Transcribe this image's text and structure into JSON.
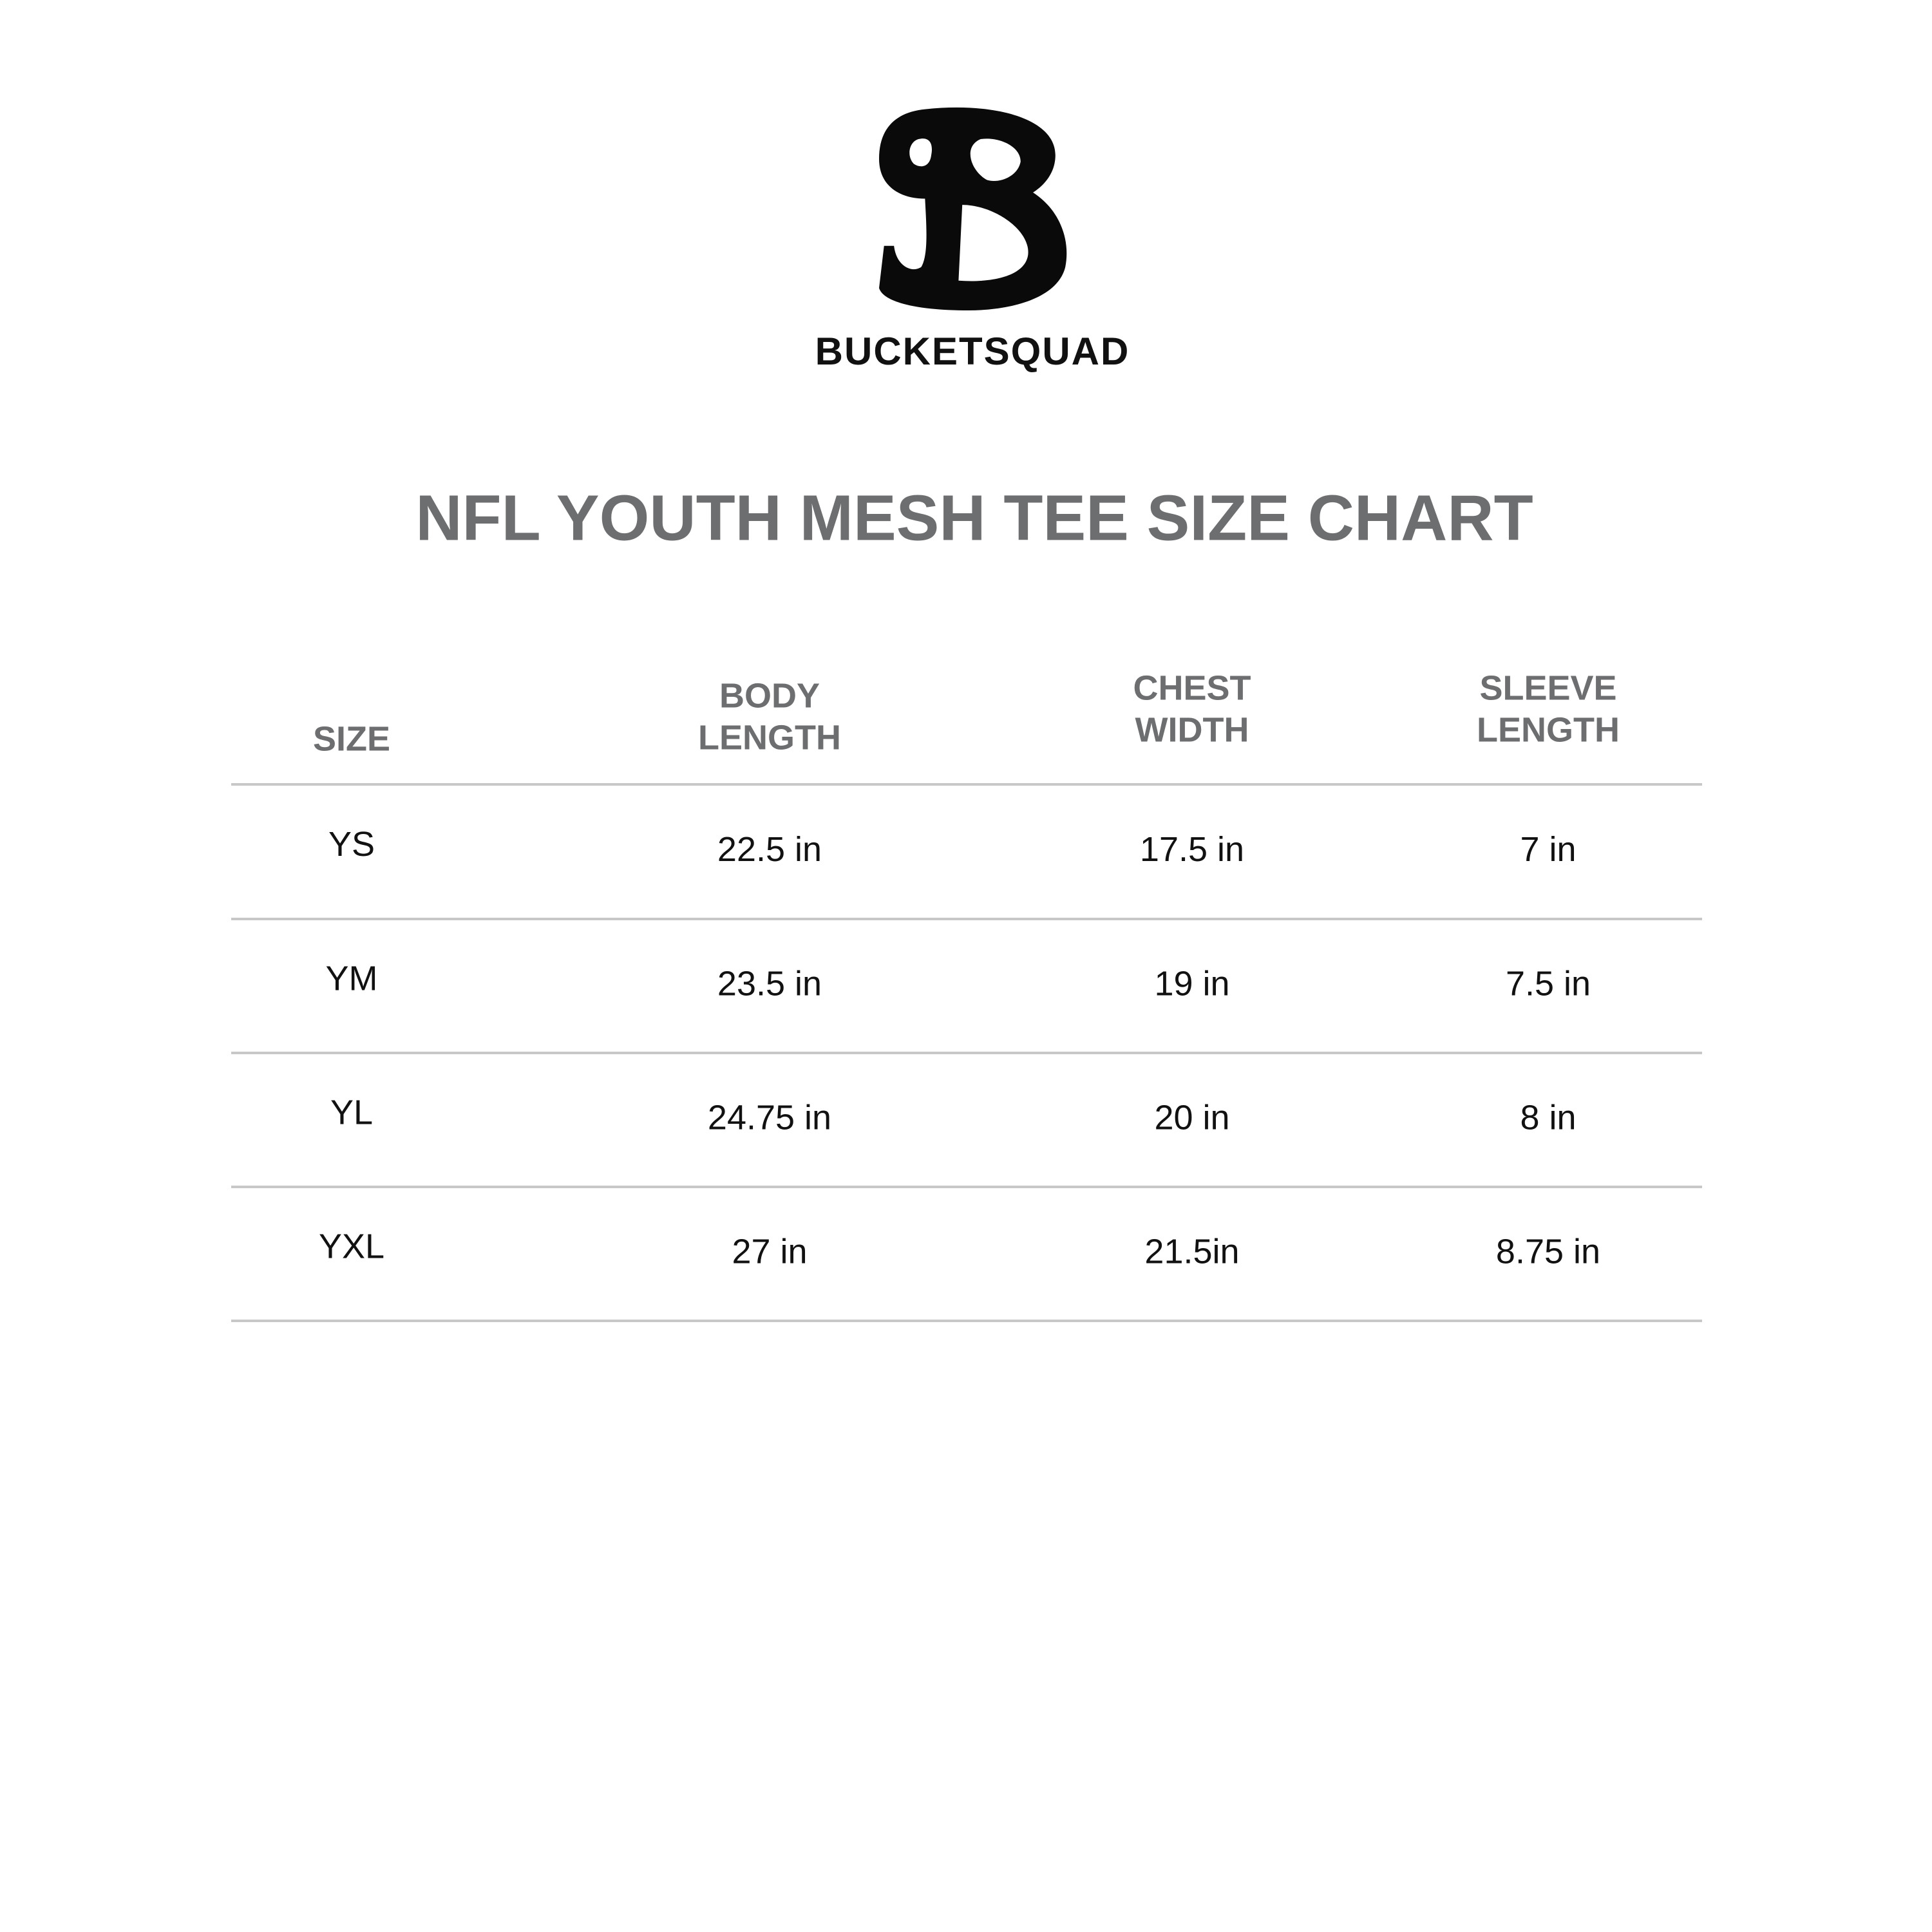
{
  "logo": {
    "text": "BUCKETSQUAD"
  },
  "title": "NFL YOUTH MESH TEE SIZE CHART",
  "table": {
    "headers": [
      [
        "SIZE"
      ],
      [
        "BODY",
        "LENGTH"
      ],
      [
        "CHEST",
        "WIDTH"
      ],
      [
        "SLEEVE",
        "LENGTH"
      ]
    ],
    "rows": [
      [
        "YS",
        "22.5 in",
        "17.5 in",
        "7 in"
      ],
      [
        "YM",
        "23.5 in",
        "19 in",
        "7.5 in"
      ],
      [
        "YL",
        "24.75 in",
        "20 in",
        "8 in"
      ],
      [
        "YXL",
        "27 in",
        "21.5in",
        "8.75 in"
      ]
    ]
  }
}
